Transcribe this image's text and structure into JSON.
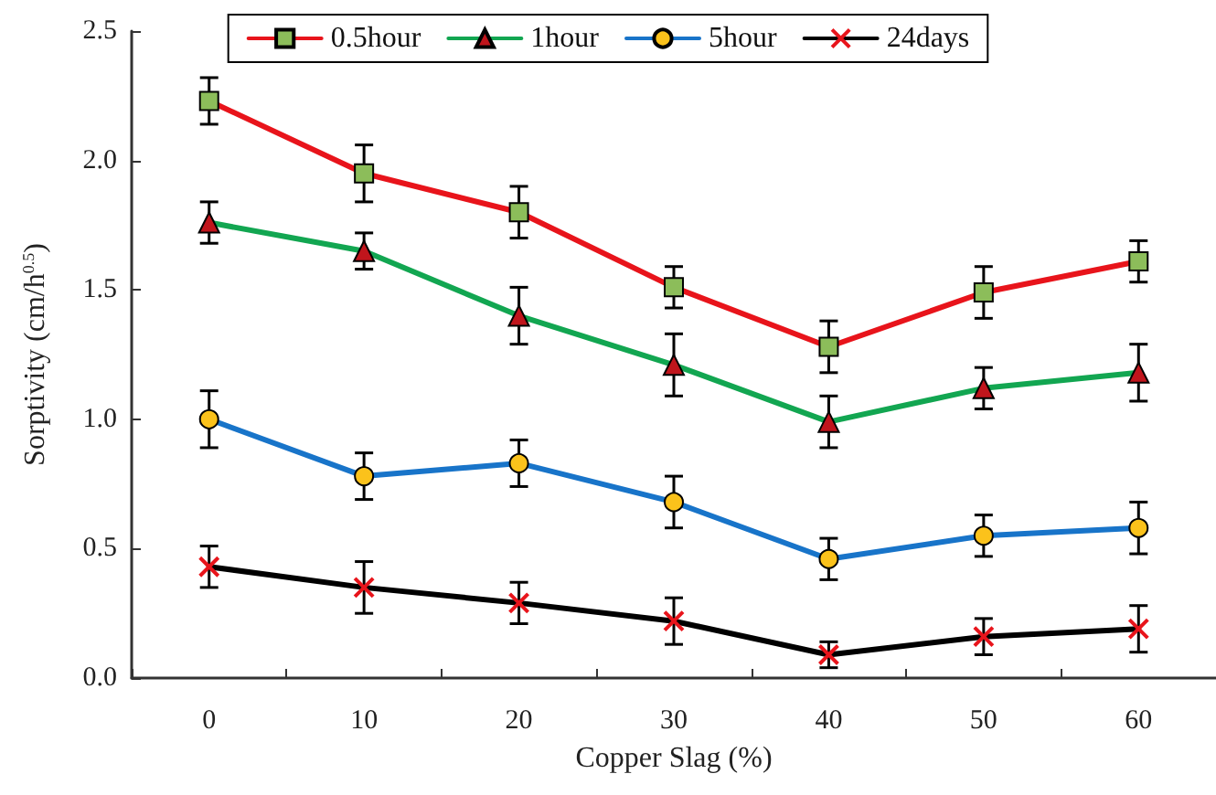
{
  "chart_data": {
    "type": "line",
    "xlabel": "Copper Slag (%)",
    "ylabel": "Sorptivity (cm/h$^{0.5}$)",
    "categories": [
      "0",
      "10",
      "20",
      "30",
      "40",
      "50",
      "60"
    ],
    "ylim": [
      0,
      2.5
    ],
    "yticks": [
      {
        "value": 0,
        "label": "0.0"
      },
      {
        "value": 0.5,
        "label": "0.5"
      },
      {
        "value": 1,
        "label": "1.0"
      },
      {
        "value": 1.5,
        "label": "1.5"
      },
      {
        "value": 2,
        "label": "2.0"
      },
      {
        "value": 2.5,
        "label": "2.5"
      }
    ],
    "grid": false,
    "legend": "top",
    "line_style": "solid",
    "series": [
      {
        "name": "0.5hour",
        "color": "#e8141b",
        "marker": "square",
        "colors": [
          "#8cbd5a",
          "#8cbd5a",
          "#8cbd5a",
          "#8cbd5a",
          "#8cbd5a",
          "#8cbd5a",
          "#8cbd5a"
        ],
        "values": [
          2.23,
          1.95,
          1.8,
          1.51,
          1.28,
          1.49,
          1.61
        ],
        "errors": [
          0.09,
          0.11,
          0.1,
          0.08,
          0.1,
          0.1,
          0.08
        ]
      },
      {
        "name": "1hour",
        "color": "#12a651",
        "marker": "triangle",
        "colors": [
          "#c0151c",
          "#c0151c",
          "#c0151c",
          "#c0151c",
          "#c0151c",
          "#c0151c",
          "#c0151c"
        ],
        "values": [
          1.76,
          1.65,
          1.4,
          1.21,
          0.99,
          1.12,
          1.18
        ],
        "errors": [
          0.08,
          0.07,
          0.11,
          0.12,
          0.1,
          0.08,
          0.11
        ]
      },
      {
        "name": "5hour",
        "color": "#1874c9",
        "marker": "circle",
        "colors": [
          "#fbc21b",
          "#fbc21b",
          "#fbc21b",
          "#fbc21b",
          "#fbc21b",
          "#fbc21b",
          "#fbc21b"
        ],
        "values": [
          1.0,
          0.78,
          0.83,
          0.68,
          0.46,
          0.55,
          0.58
        ],
        "errors": [
          0.11,
          0.09,
          0.09,
          0.1,
          0.08,
          0.08,
          0.1
        ]
      },
      {
        "name": "24days",
        "color": "#000000",
        "marker": "cross",
        "colors": [
          "#e8141b",
          "#e8141b",
          "#e8141b",
          "#e8141b",
          "#e8141b",
          "#e8141b",
          "#e8141b"
        ],
        "values": [
          0.43,
          0.35,
          0.29,
          0.22,
          0.09,
          0.16,
          0.19
        ],
        "errors": [
          0.08,
          0.1,
          0.08,
          0.09,
          0.05,
          0.07,
          0.09
        ]
      }
    ]
  }
}
